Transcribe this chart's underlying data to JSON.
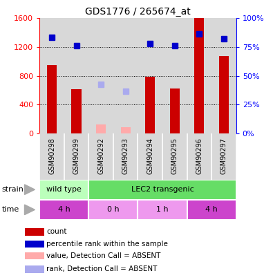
{
  "title": "GDS1776 / 265674_at",
  "samples": [
    "GSM90298",
    "GSM90299",
    "GSM90292",
    "GSM90293",
    "GSM90294",
    "GSM90295",
    "GSM90296",
    "GSM90297"
  ],
  "counts": [
    950,
    610,
    null,
    null,
    790,
    620,
    1600,
    1070
  ],
  "counts_absent": [
    null,
    null,
    120,
    80,
    null,
    null,
    null,
    null
  ],
  "ranks": [
    1330,
    1220,
    null,
    null,
    1250,
    1215,
    1380,
    1310
  ],
  "ranks_absent": [
    null,
    null,
    680,
    580,
    null,
    null,
    null,
    null
  ],
  "ylim_left": [
    0,
    1600
  ],
  "ylim_right": [
    0,
    100
  ],
  "yticks_left": [
    0,
    400,
    800,
    1200,
    1600
  ],
  "yticks_right": [
    0,
    25,
    50,
    75,
    100
  ],
  "bar_color": "#cc0000",
  "bar_absent_color": "#ffaaaa",
  "rank_color": "#0000cc",
  "rank_absent_color": "#aaaaee",
  "bg_color": "#d8d8d8",
  "wild_type_color": "#bbffbb",
  "lec2_color": "#66dd66",
  "time_4h_color": "#cc44cc",
  "time_0h_1h_color": "#ee99ee",
  "legend_items": [
    {
      "label": "count",
      "color": "#cc0000"
    },
    {
      "label": "percentile rank within the sample",
      "color": "#0000cc"
    },
    {
      "label": "value, Detection Call = ABSENT",
      "color": "#ffaaaa"
    },
    {
      "label": "rank, Detection Call = ABSENT",
      "color": "#aaaaee"
    }
  ]
}
